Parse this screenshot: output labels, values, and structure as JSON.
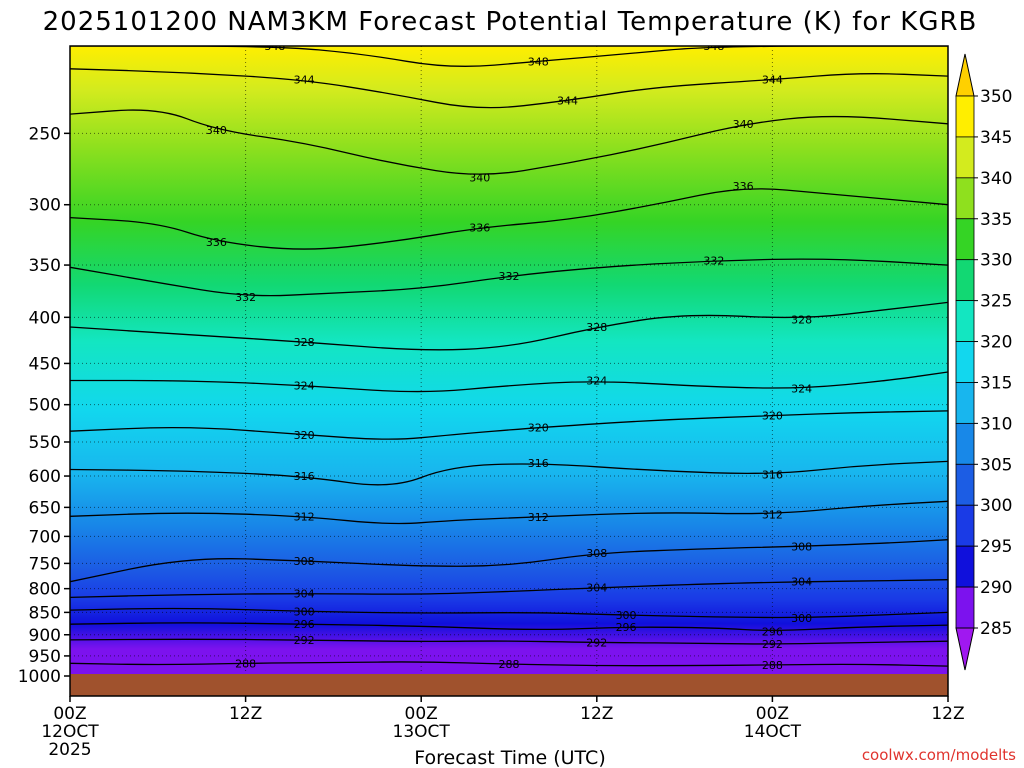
{
  "chart_data": {
    "type": "heatmap",
    "title": "2025101200 NAM3KM Forecast Potential Temperature (K) for KGRB",
    "xlabel": "Forecast Time (UTC)",
    "ylabel": "",
    "credit": "coolwx.com/modelts",
    "x_ticks": [
      {
        "hour": 0,
        "label": "00Z",
        "sub": "12OCT",
        "sub2": "2025"
      },
      {
        "hour": 12,
        "label": "12Z",
        "sub": "",
        "sub2": ""
      },
      {
        "hour": 24,
        "label": "00Z",
        "sub": "13OCT",
        "sub2": ""
      },
      {
        "hour": 36,
        "label": "12Z",
        "sub": "",
        "sub2": ""
      },
      {
        "hour": 48,
        "label": "00Z",
        "sub": "14OCT",
        "sub2": ""
      },
      {
        "hour": 60,
        "label": "12Z",
        "sub": "",
        "sub2": ""
      }
    ],
    "xlim": [
      0,
      60
    ],
    "ylim_hpa": [
      1000,
      200
    ],
    "y_ticks": [
      250,
      300,
      350,
      400,
      450,
      500,
      550,
      600,
      650,
      700,
      750,
      800,
      850,
      900,
      950,
      1000
    ],
    "colorbar": {
      "ticks": [
        "350",
        "345",
        "340",
        "335",
        "330",
        "325",
        "320",
        "315",
        "310",
        "305",
        "300",
        "295",
        "290",
        "285"
      ],
      "bands": [
        {
          "from": 345,
          "to": 350,
          "color": "#ffee00"
        },
        {
          "from": 340,
          "to": 345,
          "color": "#d3eb1e"
        },
        {
          "from": 335,
          "to": 340,
          "color": "#8fe01e"
        },
        {
          "from": 330,
          "to": 335,
          "color": "#35d425"
        },
        {
          "from": 325,
          "to": 330,
          "color": "#12d873"
        },
        {
          "from": 320,
          "to": 325,
          "color": "#13e6c1"
        },
        {
          "from": 315,
          "to": 320,
          "color": "#12d7ee"
        },
        {
          "from": 310,
          "to": 315,
          "color": "#18b6ee"
        },
        {
          "from": 305,
          "to": 310,
          "color": "#1888e8"
        },
        {
          "from": 300,
          "to": 305,
          "color": "#1c5de4"
        },
        {
          "from": 295,
          "to": 300,
          "color": "#1a3be6"
        },
        {
          "from": 290,
          "to": 295,
          "color": "#1010dc"
        },
        {
          "from": 285,
          "to": 290,
          "color": "#7c12ee"
        }
      ],
      "cap_top": "#ffd000",
      "cap_bottom": "#a018f0"
    },
    "ground_color": "#a0522d",
    "isentropes": [
      {
        "theta": 288,
        "label": "288",
        "points": [
          [
            0,
            968
          ],
          [
            6,
            972
          ],
          [
            12,
            968
          ],
          [
            18,
            966
          ],
          [
            24,
            964
          ],
          [
            30,
            970
          ],
          [
            36,
            974
          ],
          [
            42,
            974
          ],
          [
            48,
            972
          ],
          [
            54,
            970
          ],
          [
            60,
            975
          ]
        ]
      },
      {
        "theta": 292,
        "label": "292",
        "points": [
          [
            0,
            912
          ],
          [
            8,
            910
          ],
          [
            16,
            912
          ],
          [
            24,
            916
          ],
          [
            30,
            914
          ],
          [
            36,
            918
          ],
          [
            44,
            920
          ],
          [
            48,
            922
          ],
          [
            54,
            918
          ],
          [
            60,
            915
          ]
        ]
      },
      {
        "theta": 296,
        "label": "296",
        "points": [
          [
            0,
            876
          ],
          [
            8,
            872
          ],
          [
            16,
            876
          ],
          [
            24,
            880
          ],
          [
            32,
            890
          ],
          [
            38,
            882
          ],
          [
            44,
            884
          ],
          [
            48,
            892
          ],
          [
            54,
            882
          ],
          [
            60,
            878
          ]
        ]
      },
      {
        "theta": 300,
        "label": "300",
        "points": [
          [
            0,
            845
          ],
          [
            8,
            840
          ],
          [
            16,
            848
          ],
          [
            24,
            852
          ],
          [
            32,
            850
          ],
          [
            38,
            856
          ],
          [
            44,
            860
          ],
          [
            50,
            862
          ],
          [
            56,
            855
          ],
          [
            60,
            850
          ]
        ]
      },
      {
        "theta": 304,
        "label": "304",
        "points": [
          [
            0,
            818
          ],
          [
            8,
            812
          ],
          [
            16,
            810
          ],
          [
            24,
            812
          ],
          [
            30,
            806
          ],
          [
            36,
            798
          ],
          [
            44,
            790
          ],
          [
            50,
            786
          ],
          [
            56,
            784
          ],
          [
            60,
            782
          ]
        ]
      },
      {
        "theta": 308,
        "label": "308",
        "points": [
          [
            0,
            786
          ],
          [
            8,
            738
          ],
          [
            16,
            745
          ],
          [
            24,
            756
          ],
          [
            30,
            755
          ],
          [
            36,
            730
          ],
          [
            44,
            722
          ],
          [
            50,
            718
          ],
          [
            56,
            712
          ],
          [
            60,
            706
          ]
        ]
      },
      {
        "theta": 312,
        "label": "312",
        "points": [
          [
            0,
            665
          ],
          [
            8,
            658
          ],
          [
            16,
            665
          ],
          [
            22,
            680
          ],
          [
            26,
            672
          ],
          [
            32,
            666
          ],
          [
            40,
            658
          ],
          [
            48,
            662
          ],
          [
            54,
            648
          ],
          [
            60,
            640
          ]
        ]
      },
      {
        "theta": 316,
        "label": "316",
        "points": [
          [
            0,
            590
          ],
          [
            8,
            592
          ],
          [
            16,
            600
          ],
          [
            22,
            620
          ],
          [
            26,
            585
          ],
          [
            32,
            580
          ],
          [
            40,
            592
          ],
          [
            48,
            598
          ],
          [
            54,
            584
          ],
          [
            60,
            578
          ]
        ]
      },
      {
        "theta": 320,
        "label": "320",
        "points": [
          [
            0,
            535
          ],
          [
            8,
            528
          ],
          [
            16,
            540
          ],
          [
            22,
            548
          ],
          [
            26,
            540
          ],
          [
            32,
            530
          ],
          [
            40,
            520
          ],
          [
            48,
            514
          ],
          [
            54,
            510
          ],
          [
            60,
            508
          ]
        ]
      },
      {
        "theta": 324,
        "label": "324",
        "points": [
          [
            0,
            470
          ],
          [
            8,
            470
          ],
          [
            16,
            476
          ],
          [
            24,
            486
          ],
          [
            30,
            476
          ],
          [
            36,
            470
          ],
          [
            44,
            478
          ],
          [
            50,
            480
          ],
          [
            56,
            470
          ],
          [
            60,
            460
          ]
        ]
      },
      {
        "theta": 328,
        "label": "328",
        "points": [
          [
            0,
            410
          ],
          [
            8,
            418
          ],
          [
            16,
            426
          ],
          [
            24,
            436
          ],
          [
            30,
            432
          ],
          [
            36,
            410
          ],
          [
            42,
            396
          ],
          [
            50,
            402
          ],
          [
            56,
            392
          ],
          [
            60,
            385
          ]
        ]
      },
      {
        "theta": 332,
        "label": "332",
        "points": [
          [
            0,
            352
          ],
          [
            6,
            366
          ],
          [
            12,
            380
          ],
          [
            18,
            376
          ],
          [
            24,
            372
          ],
          [
            30,
            360
          ],
          [
            36,
            352
          ],
          [
            44,
            346
          ],
          [
            52,
            344
          ],
          [
            60,
            350
          ]
        ]
      },
      {
        "theta": 336,
        "label": "336",
        "points": [
          [
            0,
            310
          ],
          [
            6,
            314
          ],
          [
            10,
            330
          ],
          [
            16,
            338
          ],
          [
            22,
            330
          ],
          [
            28,
            318
          ],
          [
            34,
            312
          ],
          [
            40,
            300
          ],
          [
            46,
            286
          ],
          [
            52,
            292
          ],
          [
            60,
            300
          ]
        ]
      },
      {
        "theta": 340,
        "label": "340",
        "points": [
          [
            0,
            238
          ],
          [
            6,
            234
          ],
          [
            10,
            248
          ],
          [
            16,
            256
          ],
          [
            22,
            270
          ],
          [
            28,
            280
          ],
          [
            34,
            270
          ],
          [
            40,
            258
          ],
          [
            46,
            244
          ],
          [
            52,
            238
          ],
          [
            60,
            244
          ]
        ]
      },
      {
        "theta": 344,
        "label": "344",
        "points": [
          [
            0,
            212
          ],
          [
            8,
            214
          ],
          [
            16,
            218
          ],
          [
            22,
            226
          ],
          [
            28,
            236
          ],
          [
            34,
            230
          ],
          [
            40,
            222
          ],
          [
            48,
            218
          ],
          [
            54,
            214
          ],
          [
            60,
            216
          ]
        ]
      },
      {
        "theta": 348,
        "label": "348",
        "points": [
          [
            0,
            200
          ],
          [
            14,
            200
          ],
          [
            20,
            204
          ],
          [
            26,
            212
          ],
          [
            32,
            208
          ],
          [
            38,
            204
          ],
          [
            44,
            200
          ],
          [
            60,
            200
          ]
        ]
      }
    ]
  }
}
